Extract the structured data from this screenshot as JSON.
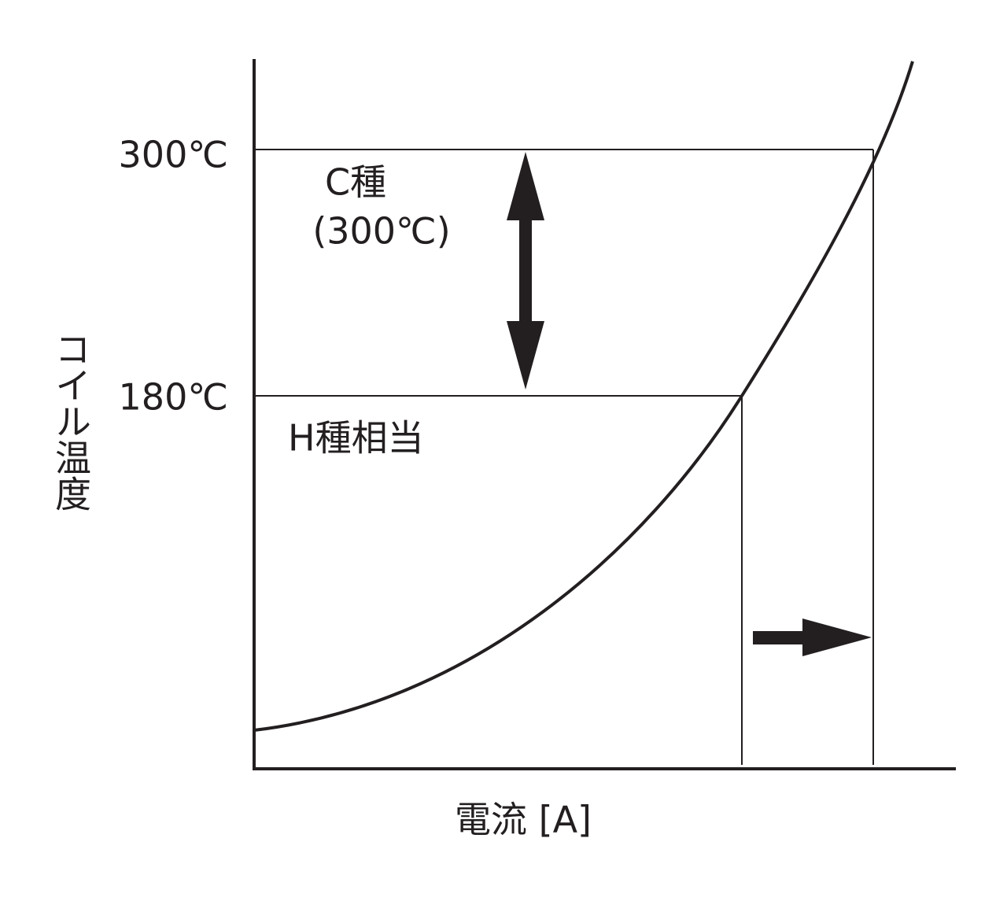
{
  "y_axis_label": "コイル温度",
  "x_axis_label": "電流 [A]",
  "levels": [
    {
      "label": "300℃"
    },
    {
      "label": "180℃"
    }
  ],
  "annotations": [
    {
      "label": "C種"
    },
    {
      "label": "(300℃)"
    },
    {
      "label": "H種相当"
    }
  ]
}
